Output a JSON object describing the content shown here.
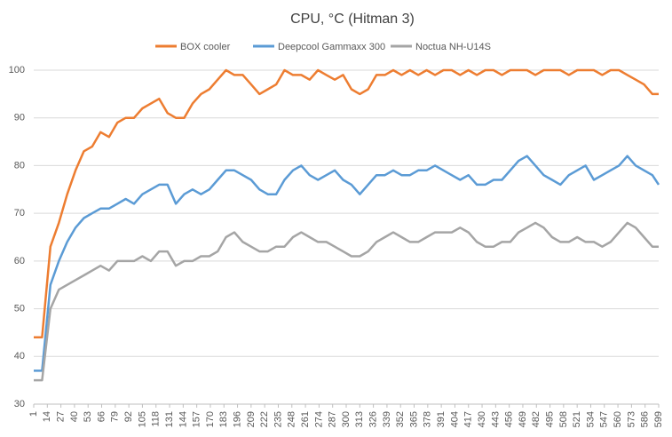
{
  "chart_data": {
    "type": "line",
    "title": "CPU, °C (Hitman 3)",
    "x": [
      1,
      9,
      17,
      25,
      33,
      41,
      49,
      57,
      65,
      73,
      81,
      89,
      97,
      105,
      113,
      121,
      129,
      137,
      145,
      153,
      161,
      169,
      177,
      185,
      193,
      201,
      209,
      217,
      225,
      233,
      241,
      249,
      257,
      265,
      273,
      281,
      289,
      297,
      305,
      313,
      321,
      329,
      337,
      345,
      353,
      361,
      369,
      377,
      385,
      393,
      401,
      409,
      417,
      425,
      433,
      441,
      449,
      457,
      465,
      473,
      481,
      489,
      497,
      505,
      513,
      521,
      529,
      537,
      545,
      553,
      561,
      569,
      577,
      585,
      593,
      599
    ],
    "xlim": [
      1,
      599
    ],
    "xticks": [
      1,
      14,
      27,
      40,
      53,
      66,
      79,
      92,
      105,
      118,
      131,
      144,
      157,
      170,
      183,
      196,
      209,
      222,
      235,
      248,
      261,
      274,
      287,
      300,
      313,
      326,
      339,
      352,
      365,
      378,
      391,
      404,
      417,
      430,
      443,
      456,
      469,
      482,
      495,
      508,
      521,
      534,
      547,
      560,
      573,
      586,
      599
    ],
    "ylim": [
      30,
      100
    ],
    "yticks": [
      30,
      40,
      50,
      60,
      70,
      80,
      90,
      100
    ],
    "grid": true,
    "legend": "top",
    "series": [
      {
        "name": "BOX cooler",
        "color": "#ed7d31",
        "values": [
          44,
          44,
          63,
          68,
          74,
          79,
          83,
          84,
          87,
          86,
          89,
          90,
          90,
          92,
          93,
          94,
          91,
          90,
          90,
          93,
          95,
          96,
          98,
          100,
          99,
          99,
          97,
          95,
          96,
          97,
          100,
          99,
          99,
          98,
          100,
          99,
          98,
          99,
          96,
          95,
          96,
          99,
          99,
          100,
          99,
          100,
          99,
          100,
          99,
          100,
          100,
          99,
          100,
          99,
          100,
          100,
          99,
          100,
          100,
          100,
          99,
          100,
          100,
          100,
          99,
          100,
          100,
          100,
          99,
          100,
          100,
          99,
          98,
          97,
          95,
          95
        ]
      },
      {
        "name": "Deepcool Gammaxx 300",
        "color": "#5b9bd5",
        "values": [
          37,
          37,
          55,
          60,
          64,
          67,
          69,
          70,
          71,
          71,
          72,
          73,
          72,
          74,
          75,
          76,
          76,
          72,
          74,
          75,
          74,
          75,
          77,
          79,
          79,
          78,
          77,
          75,
          74,
          74,
          77,
          79,
          80,
          78,
          77,
          78,
          79,
          77,
          76,
          74,
          76,
          78,
          78,
          79,
          78,
          78,
          79,
          79,
          80,
          79,
          78,
          77,
          78,
          76,
          76,
          77,
          77,
          79,
          81,
          82,
          80,
          78,
          77,
          76,
          78,
          79,
          80,
          77,
          78,
          79,
          80,
          82,
          80,
          79,
          78,
          76
        ]
      },
      {
        "name": "Noctua NH-U14S",
        "color": "#a5a5a5",
        "values": [
          35,
          35,
          50,
          54,
          55,
          56,
          57,
          58,
          59,
          58,
          60,
          60,
          60,
          61,
          60,
          62,
          62,
          59,
          60,
          60,
          61,
          61,
          62,
          65,
          66,
          64,
          63,
          62,
          62,
          63,
          63,
          65,
          66,
          65,
          64,
          64,
          63,
          62,
          61,
          61,
          62,
          64,
          65,
          66,
          65,
          64,
          64,
          65,
          66,
          66,
          66,
          67,
          66,
          64,
          63,
          63,
          64,
          64,
          66,
          67,
          68,
          67,
          65,
          64,
          64,
          65,
          64,
          64,
          63,
          64,
          66,
          68,
          67,
          65,
          63,
          63
        ]
      }
    ]
  }
}
